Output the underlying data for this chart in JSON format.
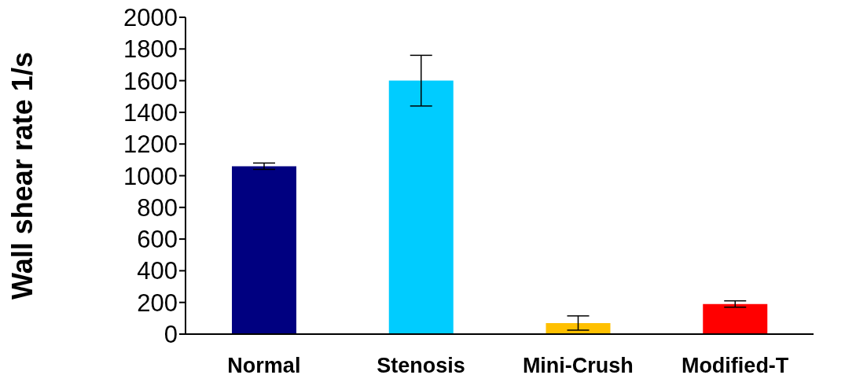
{
  "chart_data": {
    "type": "bar",
    "ylabel": "Wall shear rate 1/s",
    "categories": [
      "Normal",
      "Stenosis",
      "Mini-Crush",
      "Modified-T"
    ],
    "values": [
      1060,
      1600,
      70,
      190
    ],
    "errors": [
      20,
      160,
      45,
      20
    ],
    "colors": [
      "#000080",
      "#00ccff",
      "#ffc000",
      "#ff0000"
    ],
    "ylim": [
      0,
      2000
    ],
    "yticks": [
      0,
      200,
      400,
      600,
      800,
      1000,
      1200,
      1400,
      1600,
      1800,
      2000
    ],
    "grid": false,
    "legend": false
  }
}
